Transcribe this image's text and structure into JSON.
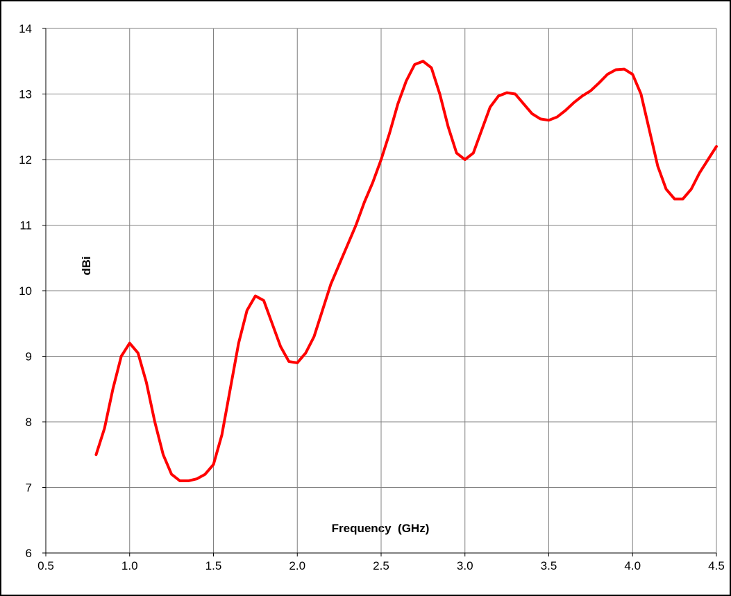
{
  "chart_data": {
    "type": "line",
    "x_label": "Frequency  (GHz)",
    "y_label": "dBi",
    "x": [
      0.8,
      0.85,
      0.9,
      0.95,
      1.0,
      1.05,
      1.1,
      1.15,
      1.2,
      1.25,
      1.3,
      1.35,
      1.4,
      1.45,
      1.5,
      1.55,
      1.6,
      1.65,
      1.7,
      1.75,
      1.8,
      1.85,
      1.9,
      1.95,
      2.0,
      2.05,
      2.1,
      2.15,
      2.2,
      2.25,
      2.3,
      2.35,
      2.4,
      2.45,
      2.5,
      2.55,
      2.6,
      2.65,
      2.7,
      2.75,
      2.8,
      2.85,
      2.9,
      2.95,
      3.0,
      3.05,
      3.1,
      3.15,
      3.2,
      3.25,
      3.3,
      3.35,
      3.4,
      3.45,
      3.5,
      3.55,
      3.6,
      3.65,
      3.7,
      3.75,
      3.8,
      3.85,
      3.9,
      3.95,
      4.0,
      4.05,
      4.1,
      4.15,
      4.2,
      4.25,
      4.3,
      4.35,
      4.4,
      4.45,
      4.5
    ],
    "series": [
      {
        "color": "#ff0000",
        "values": [
          7.5,
          7.9,
          8.5,
          9.0,
          9.2,
          9.05,
          8.6,
          8.0,
          7.5,
          7.2,
          7.1,
          7.1,
          7.13,
          7.2,
          7.35,
          7.8,
          8.5,
          9.2,
          9.7,
          9.92,
          9.85,
          9.5,
          9.15,
          8.92,
          8.9,
          9.05,
          9.3,
          9.7,
          10.1,
          10.4,
          10.7,
          11.0,
          11.35,
          11.65,
          12.0,
          12.4,
          12.85,
          13.2,
          13.45,
          13.5,
          13.4,
          13.0,
          12.5,
          12.1,
          12.0,
          12.1,
          12.45,
          12.8,
          12.97,
          13.02,
          13.0,
          12.85,
          12.7,
          12.62,
          12.6,
          12.65,
          12.75,
          12.87,
          12.97,
          13.05,
          13.17,
          13.3,
          13.37,
          13.38,
          13.3,
          13.0,
          12.45,
          11.9,
          11.55,
          11.4,
          11.4,
          11.55,
          11.8,
          12.0,
          12.2
        ]
      }
    ],
    "xlim": [
      0.5,
      4.5
    ],
    "xticks": [
      0.5,
      {
        "value": 1,
        "label": "1.0"
      },
      1.5,
      {
        "value": 2,
        "label": "2.0"
      },
      2.5,
      {
        "value": 3,
        "label": "3.0"
      },
      3.5,
      {
        "value": 4,
        "label": "4.0"
      },
      4.5
    ],
    "ylim": [
      6,
      14
    ],
    "yticks": [
      6,
      7,
      8,
      9,
      10,
      11,
      12,
      13,
      14
    ],
    "grid": true
  }
}
